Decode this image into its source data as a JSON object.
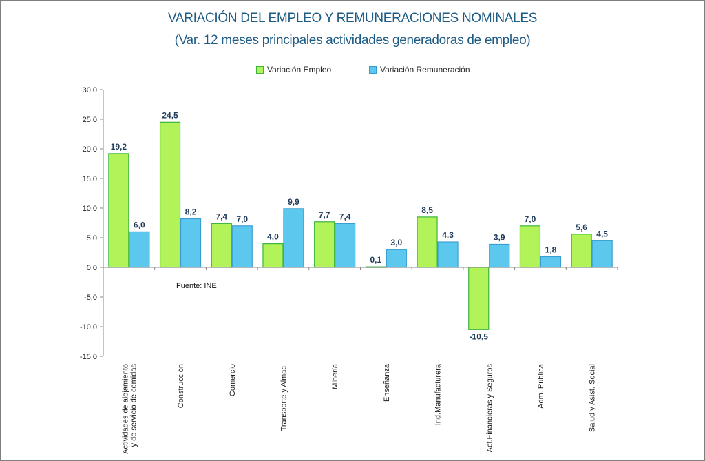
{
  "title": "VARIACIÓN DEL EMPLEO Y REMUNERACIONES NOMINALES",
  "subtitle": "(Var. 12 meses principales actividades generadoras de empleo)",
  "source": "Fuente: INE",
  "colors": {
    "empleo_fill": "#b2f35a",
    "empleo_border": "#3bb53b",
    "remuneracion_fill": "#5cc8ee",
    "remuneracion_border": "#3a9fd0",
    "title": "#1f5c85",
    "label": "#1f3a5a",
    "axis": "#888888"
  },
  "chart_data": {
    "type": "bar",
    "title": "VARIACIÓN DEL EMPLEO Y REMUNERACIONES NOMINALES",
    "subtitle": "(Var. 12 meses principales actividades generadoras de empleo)",
    "categories": [
      [
        "Actividades de alojamiento",
        "y de servicio de comidas"
      ],
      [
        "Construcción"
      ],
      [
        "Comercio"
      ],
      [
        "Transporte y Almac."
      ],
      [
        "Minería"
      ],
      [
        "Enseñanza"
      ],
      [
        "Ind.Manufacturera"
      ],
      [
        "Act.Financieras y Seguros"
      ],
      [
        "Adm. Pública"
      ],
      [
        "Salud y Asist. Social"
      ]
    ],
    "series": [
      {
        "name": "Variación Empleo",
        "values": [
          19.2,
          24.5,
          7.4,
          4.0,
          7.7,
          0.1,
          8.5,
          -10.5,
          7.0,
          5.6
        ],
        "labels": [
          "19,2",
          "24,5",
          "7,4",
          "4,0",
          "7,7",
          "0,1",
          "8,5",
          "-10,5",
          "7,0",
          "5,6"
        ]
      },
      {
        "name": "Variación Remuneración",
        "values": [
          6.0,
          8.2,
          7.0,
          9.9,
          7.4,
          3.0,
          4.3,
          3.9,
          1.8,
          4.5
        ],
        "labels": [
          "6,0",
          "8,2",
          "7,0",
          "9,9",
          "7,4",
          "3,0",
          "4,3",
          "3,9",
          "1,8",
          "4,5"
        ]
      }
    ],
    "ylim": [
      -15,
      30
    ],
    "yticks": [
      30,
      25,
      20,
      15,
      10,
      5,
      0,
      -5,
      -10,
      -15
    ],
    "ytick_labels": [
      "30,0",
      "25,0",
      "20,0",
      "15,0",
      "10,0",
      "5,0",
      "0,0",
      "-5,0",
      "-10,0",
      "-15,0"
    ],
    "grid": false,
    "legend_position": "top-center"
  }
}
